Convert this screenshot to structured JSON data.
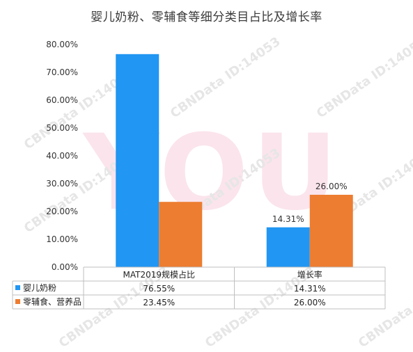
{
  "chart_data": {
    "type": "bar",
    "title": "婴儿奶粉、零辅食等细分类目占比及增长率",
    "categories": [
      "MAT2019规模占比",
      "增长率"
    ],
    "series": [
      {
        "name": "婴儿奶粉",
        "values": [
          76.55,
          14.31
        ],
        "color": "#2196f3"
      },
      {
        "name": "零辅食、营养品",
        "values": [
          23.45,
          26.0
        ],
        "color": "#ed7d31"
      }
    ],
    "ylim": [
      0,
      80
    ],
    "yticks": [
      "0.00%",
      "10.00%",
      "20.00%",
      "30.00%",
      "40.00%",
      "50.00%",
      "60.00%",
      "70.00%",
      "80.00%"
    ],
    "data_labels": [
      [
        "",
        "14.31%"
      ],
      [
        "",
        "26.00%"
      ]
    ],
    "table": [
      [
        "76.55%",
        "14.31%"
      ],
      [
        "23.45%",
        "26.00%"
      ]
    ],
    "legend_placement": "data-table"
  },
  "watermark": {
    "text": "CBNData ID:14053",
    "big": "YOU"
  }
}
